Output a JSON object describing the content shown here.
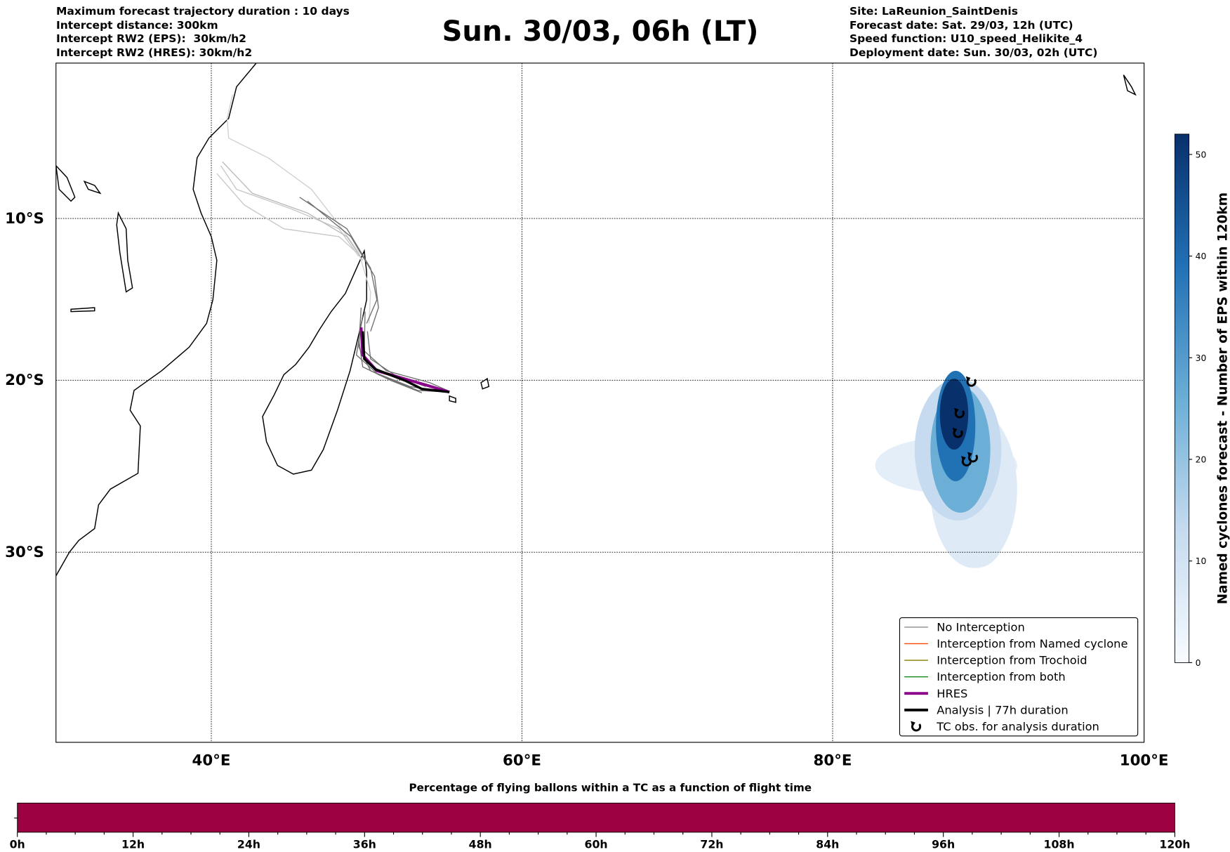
{
  "header": {
    "left": [
      "Maximum forecast trajectory duration : 10 days",
      "Intercept distance: 300km",
      "Intercept RW2 (EPS):  30km/h2",
      "Intercept RW2 (HRES): 30km/h2"
    ],
    "title": "Sun. 30/03, 06h (LT)",
    "right": [
      "Site: LaReunion_SaintDenis",
      "Forecast date: Sat. 29/03, 12h (UTC)",
      "Speed function: U10_speed_Helikite_4",
      "Deployment date: Sun. 30/03, 02h (UTC)"
    ]
  },
  "map": {
    "lon_ticks": [
      "40°E",
      "60°E",
      "80°E",
      "100°E"
    ],
    "lat_ticks": [
      "10°S",
      "20°S",
      "30°S"
    ]
  },
  "legend": [
    {
      "label": "No Interception",
      "color": "#808080"
    },
    {
      "label": "Interception from Named cyclone",
      "color": "#ff4500"
    },
    {
      "label": "Interception from Trochoid",
      "color": "#808000"
    },
    {
      "label": "Interception from both",
      "color": "#008000"
    },
    {
      "label": "HRES",
      "color": "#8b008b"
    },
    {
      "label": "Analysis | 77h duration",
      "color": "#000000"
    },
    {
      "label": "TC obs. for analysis duration",
      "color": "#000000"
    }
  ],
  "colorbar": {
    "label": "Named cyclones forecast - Number of EPS within 120km",
    "ticks": [
      "0",
      "10",
      "20",
      "30",
      "40",
      "50"
    ],
    "max": 52
  },
  "timebar": {
    "title": "Percentage of flying ballons within a TC as a function of flight time",
    "ticks": [
      "0h",
      "12h",
      "24h",
      "36h",
      "48h",
      "60h",
      "72h",
      "84h",
      "96h",
      "108h",
      "120h"
    ],
    "color": "#9e0142"
  }
}
